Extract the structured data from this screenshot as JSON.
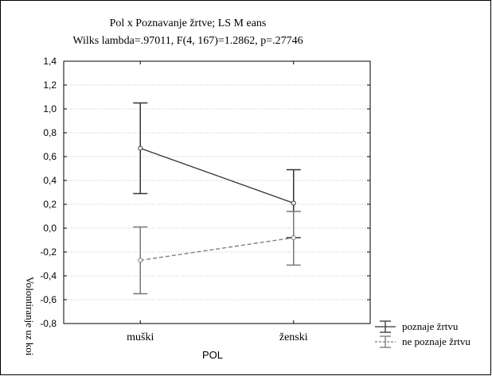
{
  "chart_data": {
    "type": "line",
    "title": "Pol x Poznavanje žrtve; LS M eans",
    "subtitle": "Wilks lambda=.97011, F(4, 167)=1.2862, p=.27746",
    "xlabel": "POL",
    "ylabel": "Volontiranje uz koi",
    "categories": [
      "muški",
      "ženski"
    ],
    "ylim": [
      -0.8,
      1.4
    ],
    "yticks": [
      "1,4",
      "1,2",
      "1,0",
      "0,8",
      "0,6",
      "0,4",
      "0,2",
      "0,0",
      "-0,2",
      "-0,4",
      "-0,6",
      "-0,8"
    ],
    "ytick_values": [
      1.4,
      1.2,
      1.0,
      0.8,
      0.6,
      0.4,
      0.2,
      0.0,
      -0.2,
      -0.4,
      -0.6,
      -0.8
    ],
    "grid": true,
    "legend_position": "bottom-right",
    "series": [
      {
        "name": "poznaje žrtvu",
        "values": [
          0.67,
          0.21
        ],
        "lower": [
          0.29,
          -0.08
        ],
        "upper": [
          1.05,
          0.49
        ],
        "line_style": "solid",
        "color": "#333333"
      },
      {
        "name": "ne poznaje žrtvu",
        "values": [
          -0.27,
          -0.08
        ],
        "lower": [
          -0.55,
          -0.31
        ],
        "upper": [
          0.01,
          0.14
        ],
        "line_style": "dashed",
        "color": "#777777"
      }
    ]
  }
}
